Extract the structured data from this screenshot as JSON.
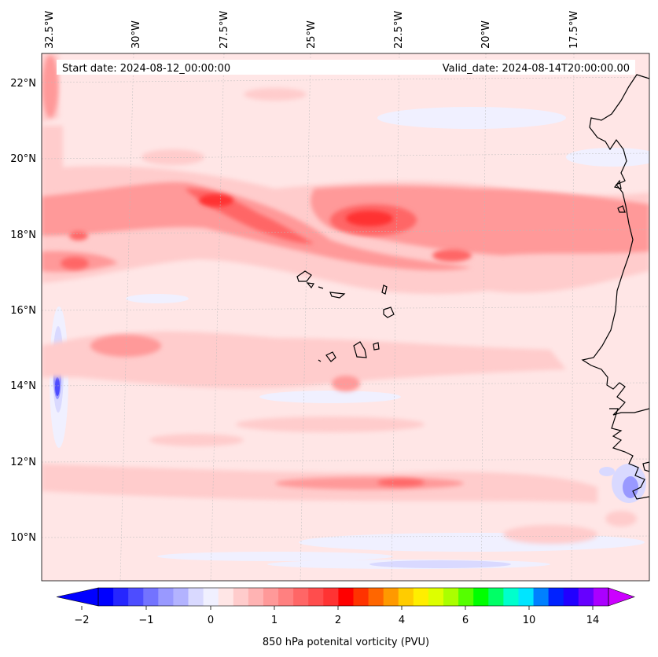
{
  "map": {
    "lon_labels": [
      "32.5°W",
      "30°W",
      "27.5°W",
      "25°W",
      "22.5°W",
      "20°W",
      "17.5°W"
    ],
    "lat_labels": [
      "22°N",
      "20°N",
      "18°N",
      "16°N",
      "14°N",
      "12°N",
      "10°N"
    ],
    "start_date": "Start date: 2024-08-12_00:00:00",
    "valid_date": "Valid_date: 2024-08-14T20:00:00.00"
  },
  "colorbar": {
    "ticks": [
      "−2",
      "−1",
      "0",
      "1",
      "2",
      "4",
      "6",
      "10",
      "14"
    ],
    "label": "850 hPa potenital vorticity (PVU)",
    "colors": [
      "#0000ff",
      "#2626ff",
      "#4d4dff",
      "#7373ff",
      "#9999ff",
      "#b3b3ff",
      "#d9d9ff",
      "#f0f0ff",
      "#ffe6e6",
      "#ffcccc",
      "#ffb3b3",
      "#ff9999",
      "#ff8080",
      "#ff6666",
      "#ff4d4d",
      "#ff3333",
      "#ff0000",
      "#ff3300",
      "#ff6600",
      "#ff9900",
      "#ffcc00",
      "#ffee00",
      "#ddff00",
      "#aaff00",
      "#55ff00",
      "#00ff00",
      "#00ff66",
      "#00ffcc",
      "#00e5ff",
      "#0080ff",
      "#0022ff",
      "#2200ff",
      "#6600ff",
      "#aa00ff"
    ],
    "over_color": "#cc00ff",
    "under_color": "#0000ff"
  }
}
